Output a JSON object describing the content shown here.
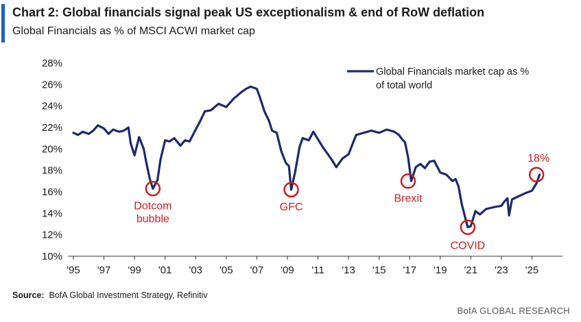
{
  "header": {
    "title": "Chart 2: Global financials signal peak US exceptionalism & end of RoW deflation",
    "subtitle": "Global Financials as % of MSCI ACWI market cap"
  },
  "footer": {
    "source_label": "Source:",
    "source_text": "BofA Global Investment Strategy, Refinitiv",
    "brand": "BofA GLOBAL RESEARCH"
  },
  "colors": {
    "series": "#1a2a6c",
    "annotation": "#d7191c",
    "accent": "#1f5fbf"
  },
  "chart_data": {
    "type": "line",
    "title": "Chart 2: Global financials signal peak US exceptionalism & end of RoW deflation",
    "subtitle": "Global Financials as % of MSCI ACWI market cap",
    "xlabel": "",
    "ylabel": "",
    "xlim": [
      1995,
      2027
    ],
    "ylim": [
      10,
      28
    ],
    "yticks": [
      10,
      12,
      14,
      16,
      18,
      20,
      22,
      24,
      26,
      28
    ],
    "ytick_labels": [
      "10%",
      "12%",
      "14%",
      "16%",
      "18%",
      "20%",
      "22%",
      "24%",
      "26%",
      "28%"
    ],
    "xticks": [
      1995,
      1997,
      1999,
      2001,
      2003,
      2005,
      2007,
      2009,
      2011,
      2013,
      2015,
      2017,
      2019,
      2021,
      2023,
      2025
    ],
    "xtick_labels": [
      "'95",
      "'97",
      "'99",
      "'01",
      "'03",
      "'05",
      "'07",
      "'09",
      "'11",
      "'13",
      "'15",
      "'17",
      "'19",
      "'21",
      "'23",
      "'25"
    ],
    "grid": false,
    "legend_position": "top-right",
    "series": [
      {
        "name": "Global Financials market cap as % of total world",
        "x": [
          1995.0,
          1995.3,
          1995.6,
          1996.0,
          1996.3,
          1996.6,
          1997.0,
          1997.3,
          1997.6,
          1998.0,
          1998.3,
          1998.6,
          1998.75,
          1999.0,
          1999.3,
          1999.6,
          1999.8,
          2000.0,
          2000.2,
          2000.5,
          2000.7,
          2001.0,
          2001.3,
          2001.6,
          2002.0,
          2002.3,
          2002.6,
          2003.0,
          2003.3,
          2003.6,
          2004.0,
          2004.5,
          2005.0,
          2005.5,
          2006.0,
          2006.3,
          2006.6,
          2007.0,
          2007.2,
          2007.5,
          2007.8,
          2008.0,
          2008.3,
          2008.6,
          2008.9,
          2009.1,
          2009.25,
          2009.5,
          2009.8,
          2010.0,
          2010.4,
          2010.7,
          2011.0,
          2011.3,
          2011.6,
          2011.9,
          2012.2,
          2012.6,
          2013.0,
          2013.5,
          2014.0,
          2014.5,
          2015.0,
          2015.5,
          2016.0,
          2016.3,
          2016.5,
          2016.7,
          2016.9,
          2017.1,
          2017.4,
          2017.7,
          2018.0,
          2018.3,
          2018.6,
          2019.0,
          2019.4,
          2019.8,
          2020.0,
          2020.2,
          2020.4,
          2020.6,
          2020.8,
          2021.0,
          2021.3,
          2021.6,
          2022.0,
          2022.3,
          2022.6,
          2023.0,
          2023.2,
          2023.4,
          2023.5,
          2023.7,
          2024.0,
          2024.3,
          2024.6,
          2025.0,
          2025.3,
          2025.5
        ],
        "y": [
          21.5,
          21.3,
          21.6,
          21.4,
          21.7,
          22.2,
          21.9,
          21.4,
          21.8,
          21.6,
          21.7,
          22.0,
          20.5,
          19.4,
          21.1,
          20.0,
          18.5,
          17.2,
          16.3,
          17.1,
          19.0,
          20.8,
          20.7,
          21.0,
          20.3,
          20.8,
          20.7,
          21.8,
          22.6,
          23.5,
          23.6,
          24.2,
          23.9,
          24.7,
          25.3,
          25.6,
          25.8,
          25.6,
          24.8,
          23.5,
          22.6,
          21.7,
          21.5,
          19.8,
          18.7,
          18.4,
          16.2,
          17.8,
          20.2,
          21.0,
          20.8,
          21.6,
          20.9,
          20.2,
          19.6,
          19.0,
          18.3,
          19.1,
          19.5,
          21.3,
          21.5,
          21.7,
          21.5,
          21.8,
          21.6,
          21.3,
          20.9,
          20.6,
          19.2,
          17.0,
          18.3,
          18.6,
          18.2,
          18.8,
          18.9,
          17.8,
          17.6,
          17.0,
          17.2,
          16.5,
          14.9,
          13.8,
          12.7,
          12.8,
          14.2,
          13.9,
          14.4,
          14.5,
          14.6,
          14.7,
          15.1,
          15.4,
          13.8,
          15.3,
          15.5,
          15.7,
          15.9,
          16.1,
          16.8,
          17.6
        ]
      }
    ],
    "annotations": [
      {
        "text": "Dotcom bubble",
        "lines": [
          "Dotcom",
          "bubble"
        ],
        "x": 2000.2,
        "y": 16.3
      },
      {
        "text": "GFC",
        "lines": [
          "GFC"
        ],
        "x": 2009.25,
        "y": 16.2
      },
      {
        "text": "Brexit",
        "lines": [
          "Brexit"
        ],
        "x": 2016.9,
        "y": 17.0
      },
      {
        "text": "COVID",
        "lines": [
          "COVID"
        ],
        "x": 2020.8,
        "y": 12.7
      },
      {
        "text": "18%",
        "lines": [
          "18%"
        ],
        "x": 2025.3,
        "y": 17.6
      }
    ]
  }
}
